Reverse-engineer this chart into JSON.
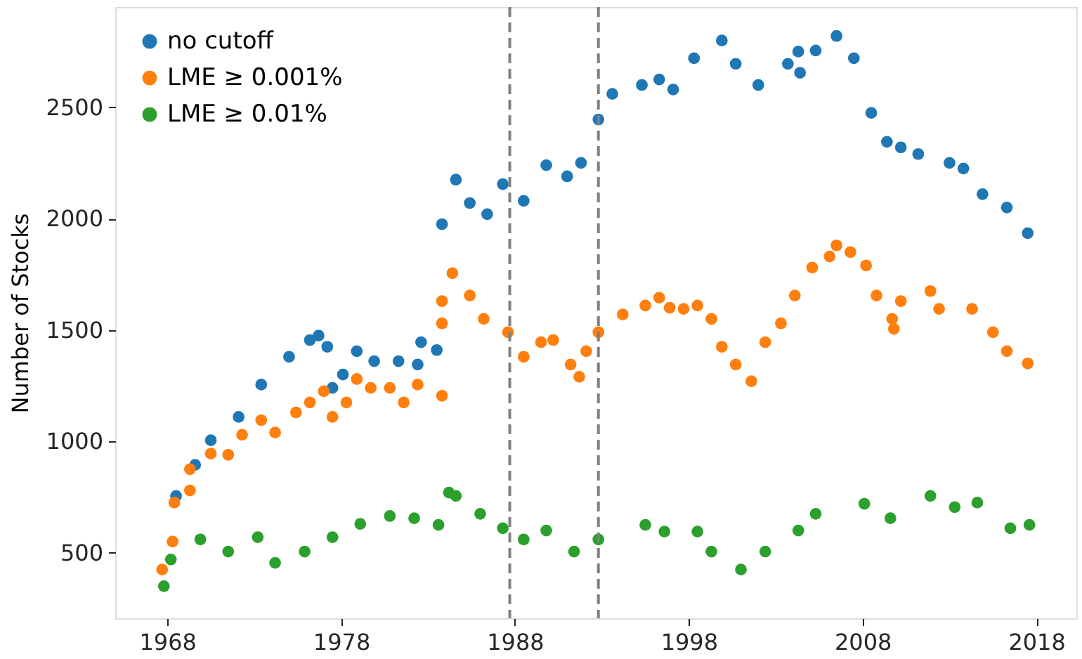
{
  "chart_data": {
    "type": "scatter",
    "ylabel": "Number of Stocks",
    "xlim": [
      1965.0,
      2020.3
    ],
    "ylim": [
      206,
      2950
    ],
    "xticks": [
      1968,
      1978,
      1988,
      1998,
      2008,
      2018
    ],
    "yticks": [
      500,
      1000,
      1500,
      2000,
      2500
    ],
    "grid": false,
    "legend": "top left",
    "marker": "circle",
    "ref_lines": [
      {
        "axis": "x",
        "value": 1987.7,
        "color": "#808080",
        "line_style": "dashed"
      },
      {
        "axis": "x",
        "value": 1992.8,
        "color": "#808080",
        "line_style": "dashed"
      }
    ],
    "series": [
      {
        "name": "no cutoff",
        "color": "#1f77b4",
        "x": [
          1968.5,
          1969.6,
          1970.5,
          1972.1,
          1973.4,
          1975.0,
          1976.2,
          1976.7,
          1977.2,
          1977.5,
          1978.1,
          1978.9,
          1979.9,
          1981.3,
          1982.4,
          1982.6,
          1983.5,
          1983.8,
          1984.6,
          1985.4,
          1986.4,
          1987.3,
          1988.5,
          1989.8,
          1991.0,
          1991.8,
          1992.8,
          1993.6,
          1995.3,
          1996.3,
          1997.1,
          1998.3,
          1999.9,
          2000.7,
          2002.0,
          2003.7,
          2004.3,
          2004.4,
          2005.3,
          2006.5,
          2007.5,
          2008.5,
          2009.4,
          2010.2,
          2011.2,
          2013.0,
          2013.8,
          2014.9,
          2016.3,
          2017.5
        ],
        "values": [
          755,
          895,
          1005,
          1110,
          1255,
          1380,
          1455,
          1475,
          1425,
          1240,
          1300,
          1405,
          1360,
          1360,
          1345,
          1445,
          1410,
          1975,
          2175,
          2070,
          2020,
          2155,
          2080,
          2240,
          2190,
          2250,
          2445,
          2560,
          2600,
          2625,
          2580,
          2720,
          2800,
          2695,
          2600,
          2695,
          2750,
          2655,
          2755,
          2820,
          2720,
          2475,
          2345,
          2320,
          2290,
          2250,
          2225,
          2110,
          2050,
          1935
        ]
      },
      {
        "name": "LME ≥ 0.001%",
        "color": "#ff7f0e",
        "x": [
          1967.7,
          1968.3,
          1968.4,
          1969.3,
          1969.3,
          1970.5,
          1971.5,
          1972.3,
          1973.4,
          1974.2,
          1975.4,
          1976.2,
          1977.0,
          1977.5,
          1978.3,
          1978.9,
          1979.7,
          1980.8,
          1981.6,
          1982.4,
          1983.8,
          1983.8,
          1983.8,
          1984.4,
          1985.4,
          1986.2,
          1987.6,
          1988.5,
          1989.5,
          1990.2,
          1991.2,
          1991.7,
          1992.1,
          1992.8,
          1994.2,
          1995.5,
          1996.3,
          1996.9,
          1997.7,
          1998.5,
          1999.3,
          1999.9,
          2000.7,
          2001.6,
          2002.4,
          2003.3,
          2004.1,
          2005.1,
          2006.1,
          2006.5,
          2007.3,
          2008.2,
          2008.8,
          2009.7,
          2009.8,
          2010.2,
          2011.9,
          2012.4,
          2014.3,
          2015.5,
          2016.3,
          2017.5
        ],
        "values": [
          425,
          550,
          725,
          780,
          875,
          945,
          940,
          1030,
          1095,
          1040,
          1130,
          1175,
          1225,
          1110,
          1175,
          1280,
          1240,
          1240,
          1175,
          1255,
          1205,
          1530,
          1630,
          1755,
          1655,
          1550,
          1490,
          1380,
          1445,
          1455,
          1345,
          1290,
          1405,
          1490,
          1570,
          1610,
          1645,
          1600,
          1595,
          1610,
          1550,
          1425,
          1345,
          1270,
          1445,
          1530,
          1655,
          1780,
          1830,
          1880,
          1850,
          1790,
          1655,
          1550,
          1505,
          1630,
          1675,
          1595,
          1595,
          1490,
          1405,
          1350
        ]
      },
      {
        "name": "LME ≥ 0.01%",
        "color": "#2ca02c",
        "x": [
          1967.8,
          1968.2,
          1969.9,
          1971.5,
          1973.2,
          1974.2,
          1975.9,
          1977.5,
          1979.1,
          1980.8,
          1982.2,
          1983.6,
          1984.2,
          1984.6,
          1986.0,
          1987.3,
          1988.5,
          1989.8,
          1991.4,
          1992.8,
          1995.5,
          1996.6,
          1998.5,
          1999.3,
          2001.0,
          2002.4,
          2004.3,
          2005.3,
          2008.1,
          2009.6,
          2011.9,
          2013.3,
          2014.6,
          2016.5,
          2017.6
        ],
        "values": [
          350,
          470,
          560,
          505,
          570,
          455,
          505,
          570,
          630,
          665,
          655,
          625,
          770,
          755,
          675,
          610,
          560,
          600,
          505,
          560,
          625,
          595,
          595,
          505,
          425,
          505,
          600,
          675,
          720,
          655,
          755,
          705,
          725,
          610,
          625
        ]
      }
    ]
  }
}
